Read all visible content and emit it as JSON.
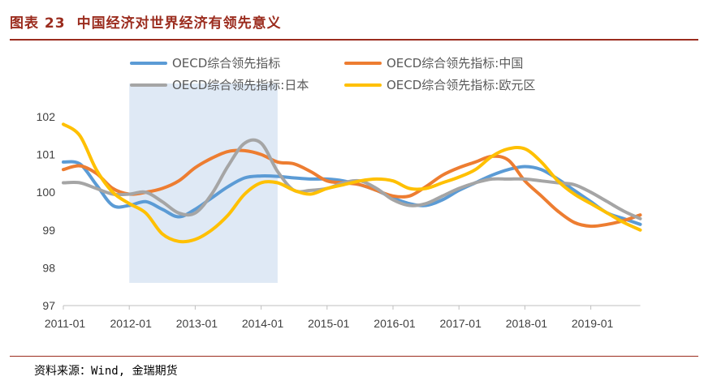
{
  "figure": {
    "number": "图表 23",
    "title": "中国经济对世界经济有领先意义",
    "source": "资料来源：Wind, 金瑞期货"
  },
  "chart_data": {
    "type": "line",
    "title": "",
    "xlabel": "",
    "ylabel": "",
    "x_ticks": [
      "2011-01",
      "2012-01",
      "2013-01",
      "2014-01",
      "2015-01",
      "2016-01",
      "2017-01",
      "2018-01",
      "2019-01"
    ],
    "y_ticks": [
      "97",
      "98",
      "99",
      "100",
      "101",
      "102"
    ],
    "ylim": [
      97,
      102.3
    ],
    "xlim": [
      "2011-01",
      "2019-10"
    ],
    "grid": false,
    "legend_position": "top",
    "shaded_region": {
      "start": "2012-01",
      "end": "2014-04",
      "color": "#dfe9f5"
    },
    "series": [
      {
        "name": "OECD综合领先指标",
        "color": "#5b9bd5",
        "x": [
          "2011-01",
          "2011-04",
          "2011-07",
          "2011-10",
          "2012-01",
          "2012-04",
          "2012-07",
          "2012-10",
          "2013-01",
          "2013-04",
          "2013-07",
          "2013-10",
          "2014-01",
          "2014-04",
          "2014-07",
          "2014-10",
          "2015-01",
          "2015-04",
          "2015-07",
          "2015-10",
          "2016-01",
          "2016-04",
          "2016-07",
          "2016-10",
          "2017-01",
          "2017-04",
          "2017-07",
          "2017-10",
          "2018-01",
          "2018-04",
          "2018-07",
          "2018-10",
          "2019-01",
          "2019-04",
          "2019-07",
          "2019-10"
        ],
        "values": [
          100.8,
          100.75,
          100.2,
          99.65,
          99.65,
          99.75,
          99.55,
          99.35,
          99.55,
          99.85,
          100.15,
          100.38,
          100.43,
          100.42,
          100.38,
          100.35,
          100.35,
          100.3,
          100.2,
          100.05,
          99.85,
          99.7,
          99.65,
          99.8,
          100.05,
          100.25,
          100.45,
          100.6,
          100.68,
          100.6,
          100.35,
          100.05,
          99.75,
          99.45,
          99.3,
          99.15
        ]
      },
      {
        "name": "OECD综合领先指标:中国",
        "color": "#ed7d31",
        "x": [
          "2011-01",
          "2011-04",
          "2011-07",
          "2011-10",
          "2012-01",
          "2012-04",
          "2012-07",
          "2012-10",
          "2013-01",
          "2013-04",
          "2013-07",
          "2013-10",
          "2014-01",
          "2014-04",
          "2014-07",
          "2014-10",
          "2015-01",
          "2015-04",
          "2015-07",
          "2015-10",
          "2016-01",
          "2016-04",
          "2016-07",
          "2016-10",
          "2017-01",
          "2017-04",
          "2017-07",
          "2017-10",
          "2018-01",
          "2018-04",
          "2018-07",
          "2018-10",
          "2019-01",
          "2019-04",
          "2019-07",
          "2019-10"
        ],
        "values": [
          100.6,
          100.7,
          100.5,
          100.1,
          99.95,
          100.0,
          100.1,
          100.3,
          100.65,
          100.9,
          101.08,
          101.1,
          101.0,
          100.8,
          100.75,
          100.55,
          100.3,
          100.25,
          100.2,
          100.05,
          99.9,
          99.9,
          100.15,
          100.45,
          100.65,
          100.8,
          100.95,
          100.85,
          100.3,
          99.9,
          99.5,
          99.2,
          99.1,
          99.15,
          99.25,
          99.4
        ]
      },
      {
        "name": "OECD综合领先指标:日本",
        "color": "#a5a5a5",
        "x": [
          "2011-01",
          "2011-04",
          "2011-07",
          "2011-10",
          "2012-01",
          "2012-04",
          "2012-07",
          "2012-10",
          "2013-01",
          "2013-04",
          "2013-07",
          "2013-10",
          "2014-01",
          "2014-04",
          "2014-07",
          "2014-10",
          "2015-01",
          "2015-04",
          "2015-07",
          "2015-10",
          "2016-01",
          "2016-04",
          "2016-07",
          "2016-10",
          "2017-01",
          "2017-04",
          "2017-07",
          "2017-10",
          "2018-01",
          "2018-04",
          "2018-07",
          "2018-10",
          "2019-01",
          "2019-04",
          "2019-07",
          "2019-10"
        ],
        "values": [
          100.25,
          100.25,
          100.1,
          99.95,
          99.95,
          100.0,
          99.75,
          99.45,
          99.45,
          99.95,
          100.7,
          101.3,
          101.3,
          100.55,
          100.05,
          100.05,
          100.1,
          100.25,
          100.3,
          100.1,
          99.8,
          99.65,
          99.7,
          99.9,
          100.1,
          100.25,
          100.35,
          100.35,
          100.35,
          100.3,
          100.25,
          100.2,
          100.0,
          99.75,
          99.5,
          99.3
        ]
      },
      {
        "name": "OECD综合领先指标:欧元区",
        "color": "#ffc000",
        "x": [
          "2011-01",
          "2011-04",
          "2011-07",
          "2011-10",
          "2012-01",
          "2012-04",
          "2012-07",
          "2012-10",
          "2013-01",
          "2013-04",
          "2013-07",
          "2013-10",
          "2014-01",
          "2014-04",
          "2014-07",
          "2014-10",
          "2015-01",
          "2015-04",
          "2015-07",
          "2015-10",
          "2016-01",
          "2016-04",
          "2016-07",
          "2016-10",
          "2017-01",
          "2017-04",
          "2017-07",
          "2017-10",
          "2018-01",
          "2018-04",
          "2018-07",
          "2018-10",
          "2019-01",
          "2019-04",
          "2019-07",
          "2019-10"
        ],
        "values": [
          101.8,
          101.5,
          100.6,
          100.0,
          99.7,
          99.45,
          98.9,
          98.7,
          98.75,
          99.0,
          99.4,
          99.95,
          100.25,
          100.25,
          100.05,
          99.95,
          100.1,
          100.2,
          100.3,
          100.35,
          100.3,
          100.1,
          100.1,
          100.25,
          100.4,
          100.6,
          100.95,
          101.15,
          101.15,
          100.8,
          100.3,
          99.95,
          99.7,
          99.45,
          99.2,
          99.0
        ]
      }
    ]
  }
}
